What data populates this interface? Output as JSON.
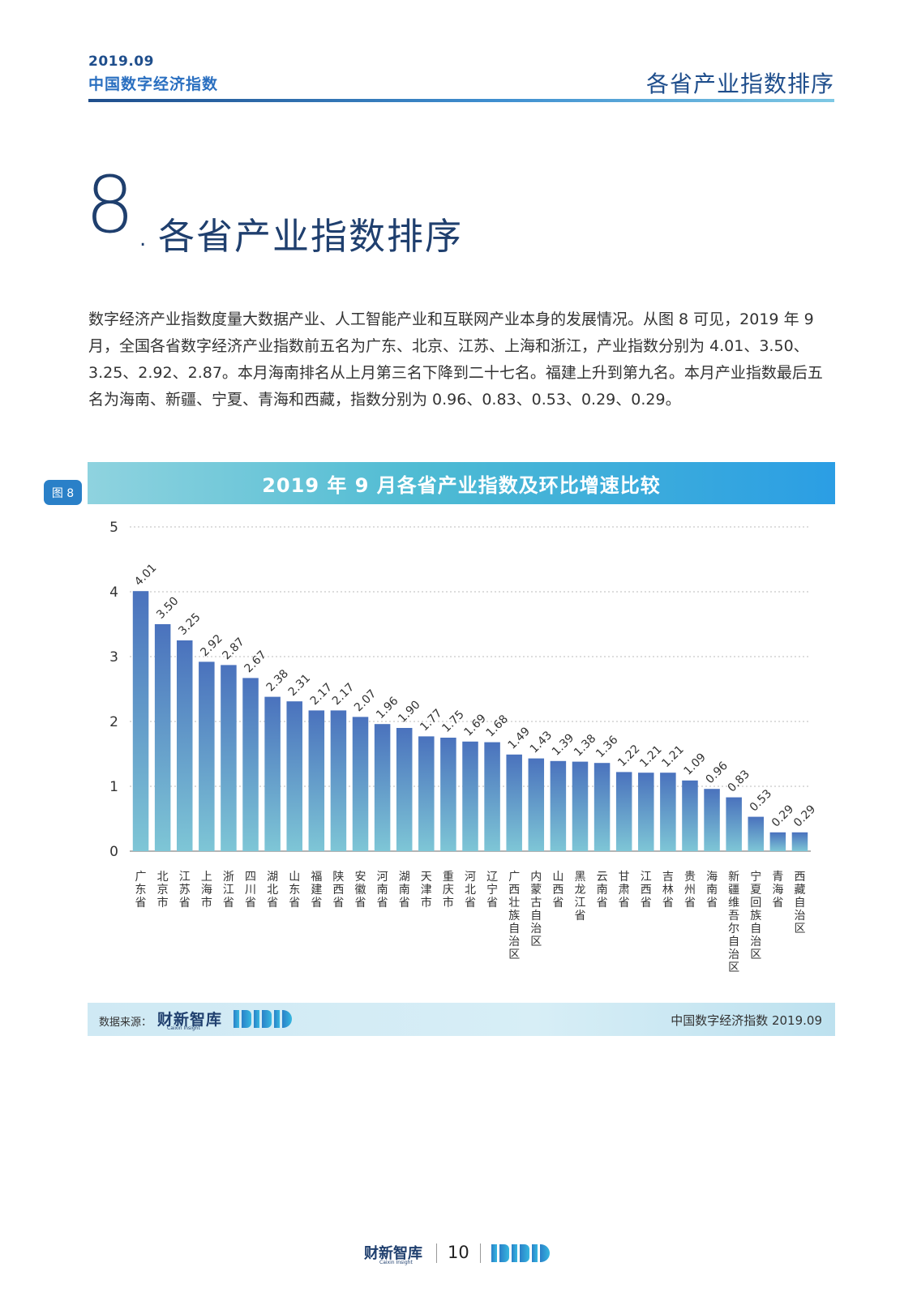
{
  "header": {
    "date": "2019.09",
    "brand": "中国数字经济指数",
    "section": "各省产业指数排序"
  },
  "section": {
    "number": "8",
    "title": "各省产业指数排序"
  },
  "paragraph": "数字经济产业指数度量大数据产业、人工智能产业和互联网产业本身的发展情况。从图 8 可见，2019 年 9 月，全国各省数字经济产业指数前五名为广东、北京、江苏、上海和浙江，产业指数分别为 4.01、3.50、3.25、2.92、2.87。本月海南排名从上月第三名下降到二十七名。福建上升到第九名。本月产业指数最后五名为海南、新疆、宁夏、青海和西藏，指数分别为 0.96、0.83、0.53、0.29、0.29。",
  "figure": {
    "badge": "图 8",
    "title": "2019 年 9 月各省产业指数及环比增速比较"
  },
  "chart_data": {
    "type": "bar",
    "title": "2019 年 9 月各省产业指数及环比增速比较",
    "ylim": [
      0,
      5
    ],
    "yticks": [
      "0",
      "1",
      "2",
      "3",
      "4",
      "5"
    ],
    "grid": true,
    "categories": [
      "广东省",
      "北京市",
      "江苏省",
      "上海市",
      "浙江省",
      "四川省",
      "湖北省",
      "山东省",
      "福建省",
      "陕西省",
      "安徽省",
      "河南省",
      "湖南省",
      "天津市",
      "重庆市",
      "河北省",
      "辽宁省",
      "广西壮族自治区",
      "内蒙古自治区",
      "山西省",
      "黑龙江省",
      "云南省",
      "甘肃省",
      "江西省",
      "吉林省",
      "贵州省",
      "海南省",
      "新疆维吾尔自治区",
      "宁夏回族自治区",
      "青海省",
      "西藏自治区"
    ],
    "values": [
      4.01,
      3.5,
      3.25,
      2.92,
      2.87,
      2.67,
      2.38,
      2.31,
      2.17,
      2.17,
      2.07,
      1.96,
      1.9,
      1.77,
      1.75,
      1.69,
      1.68,
      1.49,
      1.43,
      1.39,
      1.38,
      1.36,
      1.22,
      1.21,
      1.21,
      1.09,
      0.96,
      0.83,
      0.53,
      0.29,
      0.29
    ],
    "labels": [
      "4.01",
      "3.50",
      "3.25",
      "2.92",
      "2.87",
      "2.67",
      "2.38",
      "2.31",
      "2.17",
      "2.17",
      "2.07",
      "1.96",
      "1.90",
      "1.77",
      "1.75",
      "1.69",
      "1.68",
      "1.49",
      "1.43",
      "1.39",
      "1.38",
      "1.36",
      "1.22",
      "1.21",
      "1.21",
      "1.09",
      "0.96",
      "0.83",
      "0.53",
      "0.29",
      "0.29"
    ],
    "bar_color_top": "#4a72bd",
    "bar_color_bottom": "#7ec6d6"
  },
  "source": {
    "label": "数据来源：",
    "logo_text": "财新智库",
    "logo_sub": "Caixin Insight",
    "right_text": "中国数字经济指数 2019.09"
  },
  "footer": {
    "logo_text": "财新智库",
    "logo_sub": "Caixin Insight",
    "page_number": "10"
  }
}
